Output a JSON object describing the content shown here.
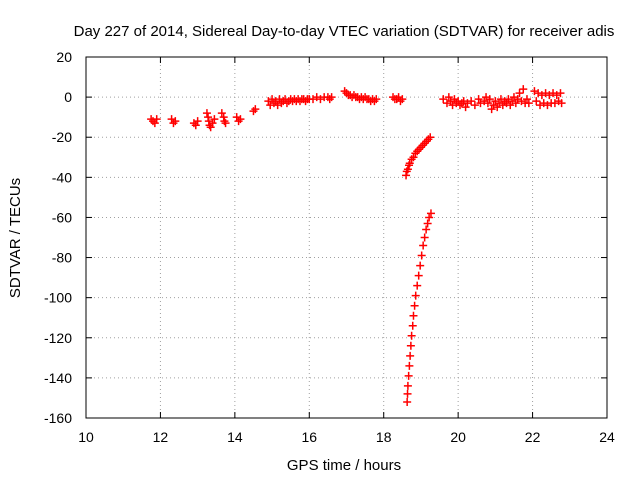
{
  "chart_data": {
    "type": "scatter",
    "title": "Day 227 of 2014, Sidereal Day-to-day VTEC variation (SDTVAR) for receiver adis",
    "xlabel": "GPS time / hours",
    "ylabel": "SDTVAR / TECUs",
    "xlim": [
      10,
      24
    ],
    "ylim": [
      -160,
      20
    ],
    "xticks": [
      10,
      12,
      14,
      16,
      18,
      20,
      22,
      24
    ],
    "yticks": [
      -160,
      -140,
      -120,
      -100,
      -80,
      -60,
      -40,
      -20,
      0,
      20
    ],
    "grid": true,
    "legend": "none",
    "marker": "plus",
    "color": "#ff0000",
    "series": [
      {
        "points": [
          [
            11.75,
            -11
          ],
          [
            11.8,
            -12
          ],
          [
            11.85,
            -13
          ],
          [
            11.9,
            -11
          ],
          [
            12.3,
            -11
          ],
          [
            12.35,
            -13
          ],
          [
            12.4,
            -12
          ],
          [
            12.9,
            -13
          ],
          [
            12.95,
            -14
          ],
          [
            13.0,
            -12
          ],
          [
            13.25,
            -8
          ],
          [
            13.28,
            -10
          ],
          [
            13.3,
            -12
          ],
          [
            13.32,
            -14
          ],
          [
            13.35,
            -15
          ],
          [
            13.4,
            -13
          ],
          [
            13.45,
            -11
          ],
          [
            13.65,
            -8
          ],
          [
            13.7,
            -10
          ],
          [
            13.72,
            -12
          ],
          [
            13.75,
            -13
          ],
          [
            14.05,
            -10
          ],
          [
            14.1,
            -12
          ],
          [
            14.15,
            -11
          ],
          [
            14.5,
            -7
          ],
          [
            14.55,
            -6
          ],
          [
            14.9,
            -2
          ],
          [
            14.95,
            -4
          ],
          [
            15.0,
            -1
          ],
          [
            15.05,
            -3
          ],
          [
            15.1,
            -2
          ],
          [
            15.15,
            -4
          ],
          [
            15.2,
            -1
          ],
          [
            15.25,
            -3
          ],
          [
            15.3,
            -2
          ],
          [
            15.35,
            -1
          ],
          [
            15.4,
            -3
          ],
          [
            15.45,
            -2
          ],
          [
            15.5,
            -1
          ],
          [
            15.55,
            -2
          ],
          [
            15.6,
            -1
          ],
          [
            15.65,
            -2
          ],
          [
            15.7,
            -1
          ],
          [
            15.75,
            -2
          ],
          [
            15.8,
            -1
          ],
          [
            15.85,
            -1
          ],
          [
            15.9,
            -2
          ],
          [
            15.95,
            -1
          ],
          [
            16.0,
            -1
          ],
          [
            16.1,
            -1
          ],
          [
            16.2,
            0
          ],
          [
            16.3,
            -1
          ],
          [
            16.4,
            0
          ],
          [
            16.5,
            0
          ],
          [
            16.55,
            -1
          ],
          [
            16.6,
            0
          ],
          [
            16.95,
            3
          ],
          [
            17.0,
            2
          ],
          [
            17.05,
            1
          ],
          [
            17.1,
            1
          ],
          [
            17.15,
            0
          ],
          [
            17.2,
            1
          ],
          [
            17.25,
            0
          ],
          [
            17.3,
            0
          ],
          [
            17.35,
            -1
          ],
          [
            17.4,
            0
          ],
          [
            17.45,
            -1
          ],
          [
            17.5,
            0
          ],
          [
            17.55,
            -1
          ],
          [
            17.6,
            -1
          ],
          [
            17.65,
            -2
          ],
          [
            17.7,
            -1
          ],
          [
            17.75,
            -2
          ],
          [
            17.8,
            -1
          ],
          [
            18.25,
            0
          ],
          [
            18.3,
            -1
          ],
          [
            18.35,
            -1
          ],
          [
            18.4,
            0
          ],
          [
            18.45,
            -2
          ],
          [
            18.5,
            -1
          ],
          [
            18.6,
            -39
          ],
          [
            18.62,
            -37
          ],
          [
            18.65,
            -36
          ],
          [
            18.68,
            -34
          ],
          [
            18.7,
            -33
          ],
          [
            18.75,
            -31
          ],
          [
            18.8,
            -30
          ],
          [
            18.85,
            -28
          ],
          [
            18.9,
            -27
          ],
          [
            18.95,
            -26
          ],
          [
            19.0,
            -25
          ],
          [
            19.05,
            -24
          ],
          [
            19.1,
            -23
          ],
          [
            19.15,
            -22
          ],
          [
            19.2,
            -21
          ],
          [
            19.25,
            -20
          ],
          [
            18.63,
            -152
          ],
          [
            18.64,
            -148
          ],
          [
            18.65,
            -144
          ],
          [
            18.67,
            -139
          ],
          [
            18.69,
            -134
          ],
          [
            18.71,
            -129
          ],
          [
            18.73,
            -124
          ],
          [
            18.75,
            -119
          ],
          [
            18.78,
            -114
          ],
          [
            18.8,
            -109
          ],
          [
            18.83,
            -104
          ],
          [
            18.86,
            -99
          ],
          [
            18.9,
            -94
          ],
          [
            18.94,
            -89
          ],
          [
            18.98,
            -84
          ],
          [
            19.02,
            -79
          ],
          [
            19.06,
            -74
          ],
          [
            19.1,
            -70
          ],
          [
            19.14,
            -66
          ],
          [
            19.18,
            -63
          ],
          [
            19.22,
            -60
          ],
          [
            19.27,
            -58
          ],
          [
            19.6,
            -1
          ],
          [
            19.7,
            -3
          ],
          [
            19.75,
            0
          ],
          [
            19.8,
            -2
          ],
          [
            19.85,
            -4
          ],
          [
            19.9,
            -1
          ],
          [
            19.95,
            -3
          ],
          [
            20.0,
            -2
          ],
          [
            20.05,
            -4
          ],
          [
            20.1,
            -3
          ],
          [
            20.15,
            -2
          ],
          [
            20.2,
            -5
          ],
          [
            20.25,
            -3
          ],
          [
            20.35,
            -2
          ],
          [
            20.45,
            -4
          ],
          [
            20.55,
            -1
          ],
          [
            20.6,
            -3
          ],
          [
            20.7,
            -2
          ],
          [
            20.75,
            0
          ],
          [
            20.8,
            -3
          ],
          [
            20.85,
            -1
          ],
          [
            20.9,
            -6
          ],
          [
            20.95,
            -4
          ],
          [
            21.0,
            -2
          ],
          [
            21.05,
            -5
          ],
          [
            21.1,
            -3
          ],
          [
            21.15,
            -1
          ],
          [
            21.2,
            -4
          ],
          [
            21.25,
            -2
          ],
          [
            21.3,
            -3
          ],
          [
            21.35,
            -1
          ],
          [
            21.4,
            -4
          ],
          [
            21.45,
            -2
          ],
          [
            21.5,
            0
          ],
          [
            21.55,
            -3
          ],
          [
            21.6,
            -1
          ],
          [
            21.65,
            2
          ],
          [
            21.7,
            -2
          ],
          [
            21.75,
            4
          ],
          [
            21.8,
            -3
          ],
          [
            21.85,
            -1
          ],
          [
            21.9,
            -3
          ],
          [
            22.05,
            3
          ],
          [
            22.1,
            -2
          ],
          [
            22.15,
            2
          ],
          [
            22.2,
            -4
          ],
          [
            22.25,
            1
          ],
          [
            22.3,
            -3
          ],
          [
            22.35,
            2
          ],
          [
            22.4,
            -4
          ],
          [
            22.45,
            1
          ],
          [
            22.5,
            -3
          ],
          [
            22.55,
            2
          ],
          [
            22.6,
            -3
          ],
          [
            22.65,
            1
          ],
          [
            22.7,
            -2
          ],
          [
            22.75,
            2
          ],
          [
            22.78,
            -3
          ]
        ]
      }
    ]
  }
}
